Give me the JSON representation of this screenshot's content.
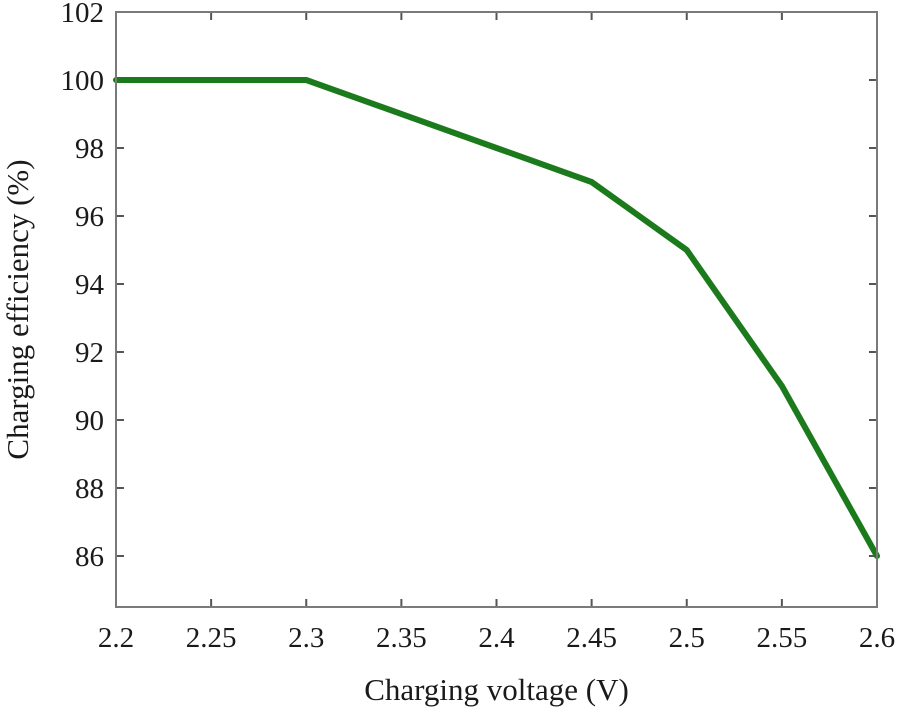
{
  "chart_data": {
    "type": "line",
    "title": "",
    "xlabel": "Charging voltage (V)",
    "ylabel": "Charging efficiency (%)",
    "xlim": [
      2.2,
      2.6
    ],
    "ylim": [
      84.5,
      102
    ],
    "xticks": [
      2.2,
      2.25,
      2.3,
      2.35,
      2.4,
      2.45,
      2.5,
      2.55,
      2.6
    ],
    "xtick_labels": [
      "2.2",
      "2.25",
      "2.3",
      "2.35",
      "2.4",
      "2.45",
      "2.5",
      "2.55",
      "2.6"
    ],
    "yticks": [
      86,
      88,
      90,
      92,
      94,
      96,
      98,
      100,
      102
    ],
    "ytick_labels": [
      "86",
      "88",
      "90",
      "92",
      "94",
      "96",
      "98",
      "100",
      "102"
    ],
    "grid": false,
    "series": [
      {
        "x": [
          2.2,
          2.3,
          2.4,
          2.45,
          2.5,
          2.55,
          2.6
        ],
        "y": [
          100,
          100,
          98,
          97,
          95,
          91,
          86
        ],
        "color": "#1b7a1b"
      }
    ]
  }
}
